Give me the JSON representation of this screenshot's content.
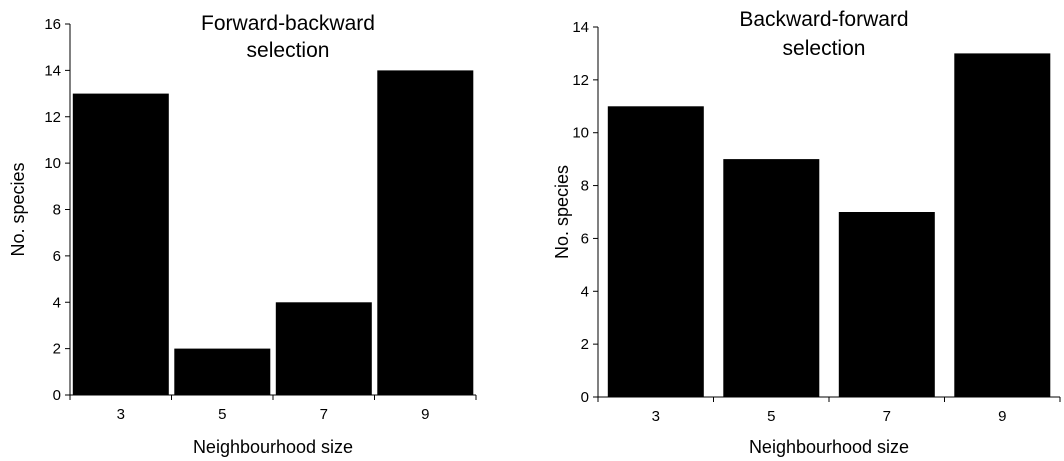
{
  "chart_data": [
    {
      "type": "bar",
      "title_lines": [
        "Forward-backward",
        "selection"
      ],
      "xlabel": "Neighbourhood size",
      "ylabel": "No. species",
      "categories": [
        "3",
        "5",
        "7",
        "9"
      ],
      "values": [
        13,
        2,
        4,
        14
      ],
      "ylim": [
        0,
        16
      ],
      "yticks": [
        0,
        2,
        4,
        6,
        8,
        10,
        12,
        14,
        16
      ],
      "ytick_labels": [
        "0",
        "2",
        "4",
        "6",
        "8",
        "10",
        "12",
        "14",
        "16"
      ],
      "grid": false,
      "bar_color": "#000000"
    },
    {
      "type": "bar",
      "title_lines": [
        "Backward-forward",
        "selection"
      ],
      "xlabel": "Neighbourhood size",
      "ylabel": "No. species",
      "categories": [
        "3",
        "5",
        "7",
        "9"
      ],
      "values": [
        11,
        9,
        7,
        13
      ],
      "ylim": [
        0,
        14
      ],
      "yticks": [
        0,
        2,
        4,
        6,
        8,
        10,
        12,
        14
      ],
      "ytick_labels": [
        "0",
        "2",
        "4",
        "6",
        "8",
        "10",
        "12",
        "14"
      ],
      "grid": false,
      "bar_color": "#000000"
    }
  ]
}
